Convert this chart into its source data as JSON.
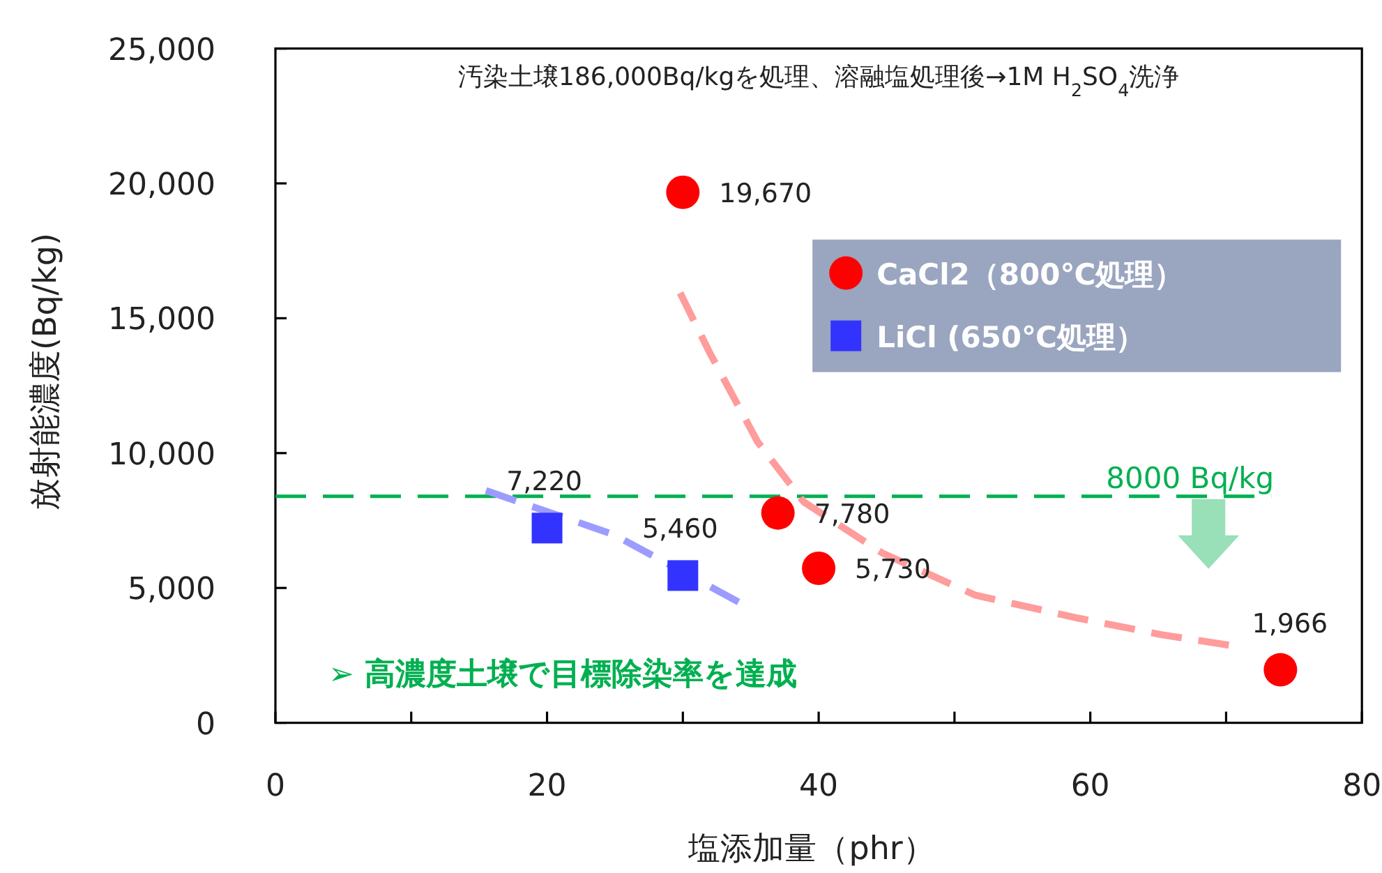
{
  "chart_data": {
    "type": "scatter",
    "title": "汚染土壌186,000Bq/kgを処理、溶融塩処理後→1M H$_{2}$SO$_{4}$洗浄",
    "xlabel": "塩添加量（phr）",
    "ylabel": "放射能濃度(Bq/kg)",
    "xlim": [
      0,
      80
    ],
    "ylim": [
      0,
      25000
    ],
    "xticks": [
      0,
      {
        "value": 10,
        "label": null
      },
      20,
      {
        "value": 30,
        "label": null
      },
      40,
      {
        "value": 50,
        "label": null
      },
      60,
      {
        "value": 70,
        "label": null
      },
      80
    ],
    "yticks": [
      0,
      {
        "value": 5000,
        "label": "5,000"
      },
      {
        "value": 10000,
        "label": "10,000"
      },
      {
        "value": 15000,
        "label": "15,000"
      },
      {
        "value": 20000,
        "label": "20,000"
      },
      {
        "value": 25000,
        "label": "25,000"
      }
    ],
    "series": [
      {
        "name": "CaCl2（800℃処理）",
        "marker": "circle",
        "color": "#ff0000",
        "x": [
          30,
          37,
          40,
          74
        ],
        "values": [
          19670,
          7780,
          5730,
          1966
        ],
        "value_labels": [
          "19,670",
          "7,780",
          "5,730",
          "1,966"
        ]
      },
      {
        "name": "LiCl (650℃処理）",
        "marker": "square",
        "color": "#3333ff",
        "x": [
          20,
          30
        ],
        "values": [
          7220,
          5460
        ],
        "value_labels": [
          "7,220",
          "5,460"
        ]
      },
      {
        "type": "line",
        "line_style": "dashed",
        "color": "#ff9c9c",
        "x": [
          29.8,
          32.0,
          35.5,
          38.9,
          44.7,
          51.5,
          59.1,
          65.2,
          70.2
        ],
        "values": [
          15940,
          13700,
          10420,
          8190,
          6290,
          4740,
          3880,
          3270,
          2880
        ]
      },
      {
        "type": "line",
        "line_style": "dashed",
        "color": "#9c9cff",
        "x": [
          15.5,
          24.9,
          34.1
        ],
        "values": [
          8610,
          6980,
          4480
        ]
      }
    ],
    "ref_lines": [
      {
        "axis": "y",
        "value": 8400,
        "label": "8000 Bq/kg",
        "color": "#00b050",
        "line_style": "dashed"
      }
    ],
    "annotations": [
      "➢ 高濃度土壌で目標除染率を達成"
    ],
    "legend": "top right",
    "grid": false
  }
}
